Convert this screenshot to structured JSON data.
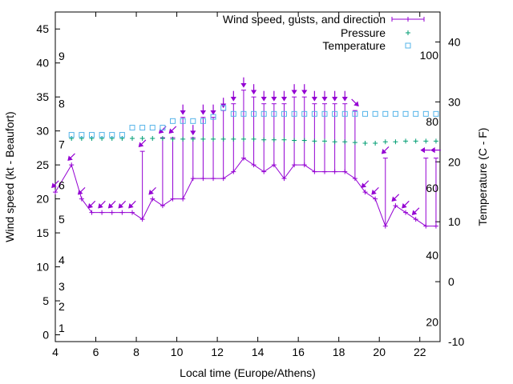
{
  "chart_data": {
    "type": "line",
    "title": "",
    "xlabel": "Local time (Europe/Athens)",
    "ylabel": "Wind speed (kt - Beaufort)",
    "y2label": "Temperature (C - F)",
    "xlim": [
      4,
      23
    ],
    "ylim": [
      -1,
      47.5
    ],
    "y2lim": [
      -10,
      45
    ],
    "x_ticks": [
      4,
      6,
      8,
      10,
      12,
      14,
      16,
      18,
      20,
      22
    ],
    "y_ticks": [
      0,
      5,
      10,
      15,
      20,
      25,
      30,
      35,
      40,
      45
    ],
    "y2_ticks": [
      -10,
      0,
      10,
      20,
      30,
      40
    ],
    "beaufort_labels": [
      {
        "label": "1",
        "y": 1
      },
      {
        "label": "2",
        "y": 4.2
      },
      {
        "label": "3",
        "y": 7.1
      },
      {
        "label": "4",
        "y": 11
      },
      {
        "label": "5",
        "y": 17
      },
      {
        "label": "6",
        "y": 22
      },
      {
        "label": "7",
        "y": 28
      },
      {
        "label": "8",
        "y": 34
      },
      {
        "label": "9",
        "y": 41
      }
    ],
    "fahrenheit_labels": [
      {
        "label": "20",
        "t": -6.7
      },
      {
        "label": "40",
        "t": 4.4
      },
      {
        "label": "60",
        "t": 15.6
      },
      {
        "label": "80",
        "t": 26.7
      },
      {
        "label": "100",
        "t": 37.8
      }
    ],
    "legend": {
      "position": "top-right",
      "entries": [
        "Wind speed, gusts, and direction",
        "Pressure",
        "Temperature"
      ]
    },
    "colors": {
      "wind": "#9400d3",
      "pressure": "#009e73",
      "temperature": "#56b4e9",
      "axis": "#000000"
    },
    "series": [
      {
        "name": "Wind speed, gusts, and direction",
        "x": [
          4.0,
          4.8,
          5.3,
          5.8,
          6.3,
          6.8,
          7.3,
          7.8,
          8.3,
          8.8,
          9.3,
          9.8,
          10.3,
          10.8,
          11.3,
          11.8,
          12.3,
          12.8,
          13.3,
          13.8,
          14.3,
          14.8,
          15.3,
          15.8,
          16.3,
          16.8,
          17.3,
          17.8,
          18.3,
          18.8,
          19.3,
          19.8,
          20.3,
          20.8,
          21.3,
          21.8,
          22.3,
          22.8
        ],
        "values": [
          21,
          25,
          20,
          18,
          18,
          18,
          18,
          18,
          17,
          20,
          19,
          20,
          20,
          23,
          23,
          23,
          23,
          24,
          26,
          25,
          24,
          25,
          23,
          25,
          25,
          24,
          24,
          24,
          24,
          23,
          21,
          20,
          16,
          19,
          18,
          17,
          16,
          16
        ],
        "gusts": [
          21,
          25,
          20,
          18,
          18,
          18,
          18,
          18,
          27,
          20,
          29,
          29,
          32,
          29,
          32,
          32,
          33,
          34,
          36,
          35,
          34,
          34,
          34,
          35,
          35,
          34,
          34,
          34,
          34,
          33,
          21,
          20,
          26,
          19,
          18,
          17,
          26,
          26
        ],
        "direction": [
          "NE",
          "NE",
          "NE",
          "NE",
          "NE",
          "NE",
          "NE",
          "NE",
          "NE",
          "NE",
          "NE",
          "NE",
          "N",
          "N",
          "N",
          "N",
          "N",
          "N",
          "N",
          "N",
          "N",
          "N",
          "N",
          "N",
          "N",
          "N",
          "N",
          "N",
          "N",
          "NW",
          "NE",
          "NE",
          "NE",
          "NE",
          "NE",
          "NE",
          "E",
          "E"
        ]
      },
      {
        "name": "Pressure",
        "x": [
          4.8,
          5.3,
          5.8,
          6.3,
          6.8,
          7.3,
          7.8,
          8.3,
          8.8,
          9.3,
          9.8,
          10.3,
          10.8,
          11.3,
          11.8,
          12.3,
          12.8,
          13.3,
          13.8,
          14.3,
          14.8,
          15.3,
          15.8,
          16.3,
          16.8,
          17.3,
          17.8,
          18.3,
          18.8,
          19.3,
          19.8,
          20.3,
          20.8,
          21.3,
          21.8,
          22.3,
          22.8
        ],
        "values": [
          28.9,
          28.9,
          28.9,
          28.9,
          28.9,
          28.9,
          28.9,
          28.9,
          28.9,
          28.9,
          28.8,
          28.8,
          28.8,
          28.8,
          28.8,
          28.8,
          28.8,
          28.8,
          28.8,
          28.7,
          28.7,
          28.7,
          28.6,
          28.6,
          28.5,
          28.5,
          28.4,
          28.4,
          28.3,
          28.2,
          28.2,
          28.4,
          28.4,
          28.5,
          28.5,
          28.5,
          28.5
        ]
      },
      {
        "name": "Temperature",
        "x": [
          4.8,
          5.3,
          5.8,
          6.3,
          6.8,
          7.3,
          7.8,
          8.3,
          8.8,
          9.3,
          9.8,
          10.3,
          10.8,
          11.3,
          11.8,
          12.3,
          12.8,
          13.3,
          13.8,
          14.3,
          14.8,
          15.3,
          15.8,
          16.3,
          16.8,
          17.3,
          17.8,
          18.3,
          18.8,
          19.3,
          19.8,
          20.3,
          20.8,
          21.3,
          21.8,
          22.3,
          22.8
        ],
        "values": [
          24.5,
          24.5,
          24.5,
          24.5,
          24.5,
          24.5,
          25.7,
          25.7,
          25.7,
          25.7,
          26.8,
          26.8,
          26.8,
          26.8,
          27.5,
          29.0,
          28.0,
          28.0,
          28.0,
          28.0,
          28.0,
          28.0,
          28.0,
          28.0,
          28.0,
          28.0,
          28.0,
          28.0,
          28.0,
          28.0,
          28.0,
          28.0,
          28.0,
          28.0,
          28.0,
          28.0,
          28.0
        ]
      }
    ]
  }
}
